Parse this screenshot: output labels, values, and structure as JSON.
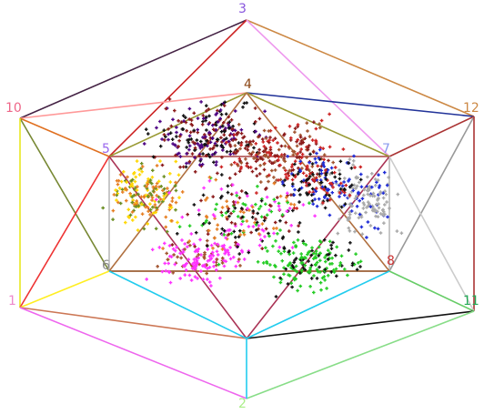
{
  "vertex_labels": [
    {
      "id": "v3",
      "text": "3",
      "color": "#8855dd"
    },
    {
      "id": "v4",
      "text": "4",
      "color": "#8b4513"
    },
    {
      "id": "v10",
      "text": "10",
      "color": "#ee6688"
    },
    {
      "id": "v12",
      "text": "12",
      "color": "#cc8844"
    },
    {
      "id": "v5",
      "text": "5",
      "color": "#9966ee"
    },
    {
      "id": "v7",
      "text": "7",
      "color": "#8899ee"
    },
    {
      "id": "v6",
      "text": "6",
      "color": "#888888"
    },
    {
      "id": "v8",
      "text": "8",
      "color": "#cc3333"
    },
    {
      "id": "v1",
      "text": "1",
      "color": "#ee88cc"
    },
    {
      "id": "v11",
      "text": "11",
      "color": "#22aa55"
    },
    {
      "id": "v2",
      "text": "2",
      "color": "#aaee88"
    }
  ],
  "point_colors": [
    "#111111",
    "#8b1a1a",
    "#cc2222",
    "#e67e22",
    "#ffd700",
    "#6b8e23",
    "#22cc22",
    "#ff33ff",
    "#1e2bd6",
    "#a9a9a9",
    "#a0522d",
    "#4b0082"
  ]
}
